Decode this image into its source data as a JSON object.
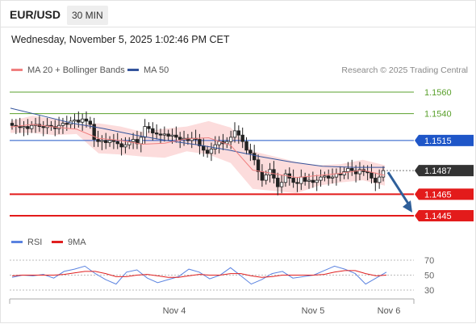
{
  "header": {
    "symbol": "EUR/USD",
    "timeframe": "30 MIN",
    "date": "Wednesday, November 5, 2025 1:02:46 PM CET",
    "credit": "Research © 2025 Trading Central"
  },
  "legend": {
    "ma20": "MA 20 + Bollinger Bands",
    "ma50": "MA 50",
    "rsi": "RSI",
    "rsi_ma": "9MA"
  },
  "colors": {
    "bollinger_fill": "#fbd6d6",
    "ma20": "#f08080",
    "ma50": "#34549c",
    "candle": "#222222",
    "resistance": "#5aa02c",
    "pivot": "#1f56c8",
    "support": "#e31b1b",
    "current": "#333333",
    "arrow": "#2f5f9a",
    "rsi": "#5b83e0",
    "rsi_ma": "#e02020"
  },
  "chart_data": [
    {
      "type": "candlestick",
      "title": "EUR/USD 30 MIN",
      "ylim": [
        1.143,
        1.1575
      ],
      "x_ticks": [
        "Nov 4",
        "Nov 5",
        "Nov 6"
      ],
      "levels": [
        {
          "label": "1.1560",
          "value": 1.156,
          "kind": "resistance"
        },
        {
          "label": "1.1540",
          "value": 1.154,
          "kind": "resistance"
        },
        {
          "label": "1.1515",
          "value": 1.1515,
          "kind": "pivot"
        },
        {
          "label": "1.1487",
          "value": 1.1487,
          "kind": "current"
        },
        {
          "label": "1.1465",
          "value": 1.1465,
          "kind": "support"
        },
        {
          "label": "1.1445",
          "value": 1.1445,
          "kind": "support"
        }
      ],
      "close_series_approx": [
        1.1529,
        1.1528,
        1.1527,
        1.1528,
        1.1526,
        1.1529,
        1.153,
        1.1528,
        1.1527,
        1.1529,
        1.1528,
        1.1526,
        1.1529,
        1.1531,
        1.153,
        1.1533,
        1.1534,
        1.1532,
        1.1535,
        1.1533,
        1.153,
        1.1516,
        1.1514,
        1.1515,
        1.1513,
        1.1515,
        1.1514,
        1.1512,
        1.1509,
        1.1511,
        1.1514,
        1.1516,
        1.1512,
        1.1518,
        1.1528,
        1.1526,
        1.1522,
        1.1521,
        1.152,
        1.1521,
        1.1519,
        1.152,
        1.1518,
        1.1516,
        1.1517,
        1.1515,
        1.1517,
        1.1516,
        1.151,
        1.1506,
        1.1503,
        1.1507,
        1.1511,
        1.1514,
        1.1512,
        1.1514,
        1.1518,
        1.1524,
        1.152,
        1.1514,
        1.1506,
        1.1503,
        1.1497,
        1.1486,
        1.1478,
        1.1483,
        1.1488,
        1.148,
        1.1472,
        1.1476,
        1.1484,
        1.148,
        1.1476,
        1.1475,
        1.1481,
        1.1477,
        1.1478,
        1.1476,
        1.1478,
        1.1481,
        1.1482,
        1.148,
        1.1481,
        1.1484,
        1.1483,
        1.1486,
        1.1489,
        1.1487,
        1.1484,
        1.1488,
        1.1486,
        1.1485,
        1.148,
        1.1476,
        1.1481,
        1.1487
      ],
      "ma50_approx": [
        1.1545,
        1.1538,
        1.1531,
        1.1526,
        1.152,
        1.1515,
        1.1511,
        1.1506,
        1.15,
        1.1495,
        1.1491,
        1.149,
        1.149
      ],
      "bollinger_upper_approx": [
        1.1533,
        1.1538,
        1.1535,
        1.153,
        1.1531,
        1.1528,
        1.1523,
        1.1526,
        1.1528,
        1.1533,
        1.1527,
        1.1505,
        1.15,
        1.1495,
        1.1492,
        1.1493,
        1.1497,
        1.1492
      ],
      "bollinger_lower_approx": [
        1.1522,
        1.1522,
        1.152,
        1.1521,
        1.1503,
        1.1502,
        1.15,
        1.1499,
        1.1505,
        1.1502,
        1.1494,
        1.147,
        1.1468,
        1.1466,
        1.1473,
        1.1476,
        1.1478,
        1.1473
      ],
      "forecast_arrow": {
        "from": 1.1487,
        "to": 1.1445
      }
    },
    {
      "type": "line",
      "title": "RSI",
      "ylim": [
        30,
        70
      ],
      "y_ticks": [
        "70",
        "50",
        "30"
      ],
      "series": [
        {
          "name": "RSI",
          "values": [
            47,
            50,
            49,
            51,
            46,
            55,
            58,
            62,
            52,
            44,
            38,
            54,
            57,
            46,
            40,
            44,
            48,
            58,
            54,
            45,
            50,
            60,
            49,
            38,
            44,
            52,
            55,
            46,
            48,
            50,
            56,
            62,
            58,
            52,
            38,
            46,
            54
          ]
        },
        {
          "name": "9MA",
          "values": [
            49,
            50,
            50,
            50,
            50,
            51,
            53,
            55,
            55,
            52,
            48,
            48,
            50,
            51,
            49,
            47,
            47,
            49,
            51,
            50,
            50,
            52,
            52,
            49,
            47,
            48,
            50,
            50,
            50,
            50,
            51,
            54,
            56,
            56,
            52,
            49,
            50
          ]
        }
      ]
    }
  ]
}
